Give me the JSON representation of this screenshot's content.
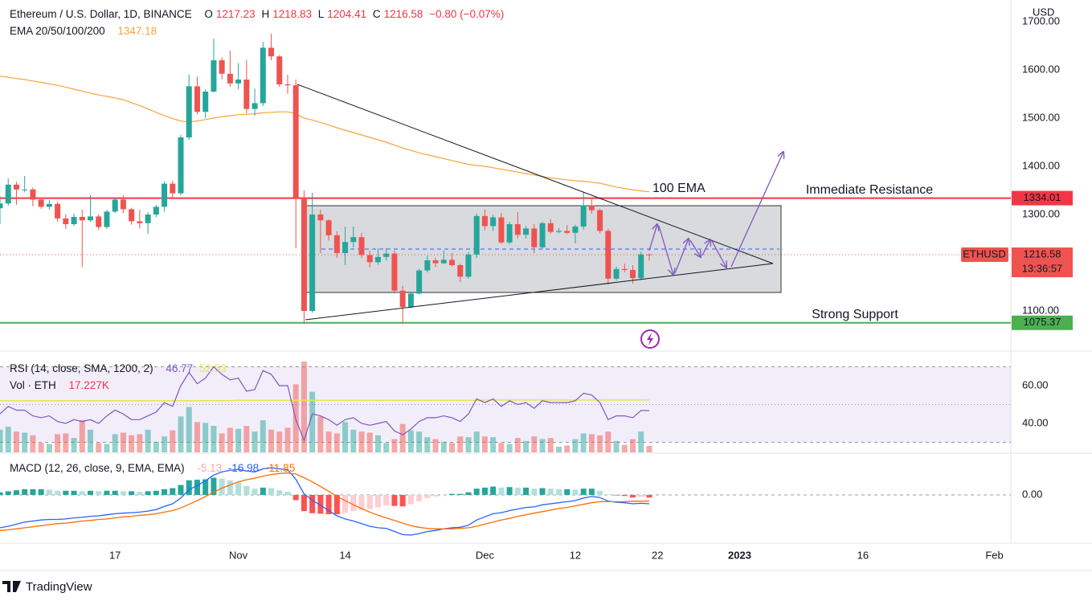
{
  "chart_data": {
    "type": "candlestick",
    "title": "Ethereum / U.S. Dollar, 1D, BINANCE",
    "ohlc_labels": [
      "O",
      "H",
      "L",
      "C"
    ],
    "change": "−0.80 (−0.07%)",
    "currency": "USD",
    "x": [
      "2022-10-03",
      "2022-10-04",
      "2022-10-05",
      "2022-10-06",
      "2022-10-07",
      "2022-10-08",
      "2022-10-09",
      "2022-10-10",
      "2022-10-11",
      "2022-10-12",
      "2022-10-13",
      "2022-10-14",
      "2022-10-15",
      "2022-10-16",
      "2022-10-17",
      "2022-10-18",
      "2022-10-19",
      "2022-10-20",
      "2022-10-21",
      "2022-10-22",
      "2022-10-23",
      "2022-10-24",
      "2022-10-25",
      "2022-10-26",
      "2022-10-27",
      "2022-10-28",
      "2022-10-29",
      "2022-10-30",
      "2022-10-31",
      "2022-11-01",
      "2022-11-02",
      "2022-11-03",
      "2022-11-04",
      "2022-11-05",
      "2022-11-06",
      "2022-11-07",
      "2022-11-08",
      "2022-11-09",
      "2022-11-10",
      "2022-11-11",
      "2022-11-12",
      "2022-11-13",
      "2022-11-14",
      "2022-11-15",
      "2022-11-16",
      "2022-11-17",
      "2022-11-18",
      "2022-11-19",
      "2022-11-20",
      "2022-11-21",
      "2022-11-22",
      "2022-11-23",
      "2022-11-24",
      "2022-11-25",
      "2022-11-26",
      "2022-11-27",
      "2022-11-28",
      "2022-11-29",
      "2022-11-30",
      "2022-12-01",
      "2022-12-02",
      "2022-12-03",
      "2022-12-04",
      "2022-12-05",
      "2022-12-06",
      "2022-12-07",
      "2022-12-08",
      "2022-12-09",
      "2022-12-10",
      "2022-12-11",
      "2022-12-12",
      "2022-12-13",
      "2022-12-14",
      "2022-12-15",
      "2022-12-16",
      "2022-12-17",
      "2022-12-18",
      "2022-12-19",
      "2022-12-20",
      "2022-12-21"
    ],
    "open": [
      1313,
      1323,
      1362,
      1352,
      1352,
      1331,
      1316,
      1322,
      1292,
      1280,
      1295,
      1288,
      1296,
      1274,
      1306,
      1331,
      1311,
      1286,
      1282,
      1300,
      1316,
      1364,
      1344,
      1460,
      1566,
      1513,
      1555,
      1620,
      1592,
      1572,
      1580,
      1519,
      1531,
      1646,
      1628,
      1570,
      1568,
      1334,
      1100,
      1300,
      1288,
      1257,
      1220,
      1243,
      1253,
      1216,
      1201,
      1212,
      1219,
      1142,
      1108,
      1136,
      1184,
      1205,
      1199,
      1206,
      1195,
      1171,
      1217,
      1297,
      1276,
      1294,
      1242,
      1280,
      1258,
      1271,
      1232,
      1282,
      1264,
      1266,
      1262,
      1275,
      1319,
      1309,
      1266,
      1167,
      1187,
      1185,
      1168,
      1217.23
    ],
    "high": [
      1338,
      1375,
      1368,
      1380,
      1356,
      1335,
      1330,
      1326,
      1300,
      1302,
      1310,
      1340,
      1300,
      1310,
      1335,
      1340,
      1314,
      1310,
      1305,
      1320,
      1369,
      1370,
      1465,
      1590,
      1586,
      1560,
      1665,
      1626,
      1640,
      1614,
      1620,
      1561,
      1658,
      1675,
      1631,
      1590,
      1580,
      1350,
      1345,
      1310,
      1290,
      1265,
      1275,
      1275,
      1262,
      1225,
      1230,
      1230,
      1225,
      1152,
      1140,
      1187,
      1215,
      1210,
      1225,
      1220,
      1198,
      1222,
      1302,
      1310,
      1300,
      1303,
      1285,
      1305,
      1276,
      1280,
      1285,
      1290,
      1272,
      1278,
      1279,
      1347,
      1335,
      1312,
      1270,
      1192,
      1198,
      1195,
      1223,
      1218.83
    ],
    "low": [
      1280,
      1318,
      1320,
      1346,
      1317,
      1312,
      1310,
      1285,
      1270,
      1276,
      1191,
      1285,
      1268,
      1270,
      1303,
      1303,
      1279,
      1271,
      1260,
      1294,
      1306,
      1336,
      1340,
      1455,
      1508,
      1500,
      1553,
      1580,
      1565,
      1560,
      1510,
      1505,
      1525,
      1620,
      1565,
      1550,
      1230,
      1073,
      1096,
      1220,
      1246,
      1210,
      1195,
      1232,
      1210,
      1190,
      1196,
      1205,
      1136,
      1073,
      1105,
      1134,
      1180,
      1191,
      1197,
      1192,
      1160,
      1167,
      1210,
      1267,
      1266,
      1239,
      1238,
      1251,
      1250,
      1220,
      1228,
      1260,
      1261,
      1259,
      1240,
      1269,
      1302,
      1261,
      1155,
      1163,
      1180,
      1157,
      1164,
      1204.41
    ],
    "close": [
      1323,
      1362,
      1352,
      1352,
      1331,
      1316,
      1322,
      1292,
      1280,
      1295,
      1288,
      1296,
      1274,
      1306,
      1331,
      1311,
      1286,
      1282,
      1300,
      1316,
      1364,
      1344,
      1460,
      1566,
      1513,
      1555,
      1620,
      1592,
      1572,
      1580,
      1519,
      1531,
      1646,
      1628,
      1570,
      1568,
      1334,
      1100,
      1300,
      1288,
      1257,
      1220,
      1243,
      1253,
      1216,
      1201,
      1212,
      1219,
      1142,
      1108,
      1136,
      1184,
      1205,
      1199,
      1206,
      1195,
      1171,
      1217,
      1297,
      1276,
      1294,
      1242,
      1280,
      1258,
      1271,
      1232,
      1282,
      1264,
      1266,
      1262,
      1275,
      1319,
      1309,
      1266,
      1167,
      1187,
      1185,
      1168,
      1217.38,
      1216.58
    ],
    "up_color": "#26a69a",
    "down_color": "#ef5350",
    "ema": {
      "name": "EMA 20/50/100/200",
      "color": "#f5a53a",
      "values": [
        1587,
        1585,
        1582,
        1580,
        1577,
        1574,
        1571,
        1568,
        1564,
        1560,
        1556,
        1552,
        1548,
        1545,
        1542,
        1538,
        1532,
        1526,
        1519,
        1512,
        1505,
        1499,
        1494,
        1492,
        1494,
        1497,
        1500,
        1503,
        1505,
        1507,
        1508,
        1509,
        1511,
        1512,
        1513,
        1513,
        1509,
        1500,
        1496,
        1491,
        1486,
        1480,
        1475,
        1470,
        1465,
        1460,
        1455,
        1450,
        1444,
        1438,
        1433,
        1428,
        1424,
        1420,
        1416,
        1412,
        1408,
        1404,
        1402,
        1400,
        1397,
        1394,
        1391,
        1388,
        1385,
        1382,
        1379,
        1376,
        1374,
        1372,
        1370,
        1369,
        1367,
        1365,
        1361,
        1357,
        1354,
        1351,
        1349,
        1347.18
      ]
    },
    "ema_label": "100 EMA",
    "xlim": [
      "2022-10-03",
      "2023-02-03"
    ],
    "xticks": [
      {
        "value": "2022-10-17",
        "label": "17"
      },
      {
        "value": "2022-11-01",
        "label": "Nov"
      },
      {
        "value": "2022-11-14",
        "label": "14"
      },
      {
        "value": "2022-12-01",
        "label": "Dec"
      },
      {
        "value": "2022-12-12",
        "label": "12"
      },
      {
        "value": "2022-12-22",
        "label": "22"
      },
      {
        "value": "2023-01-01",
        "label": "2023"
      },
      {
        "value": "2023-01-16",
        "label": "16"
      },
      {
        "value": "2023-02-01",
        "label": "Feb"
      }
    ],
    "ylim": [
      1016.67,
      1745
    ],
    "yticks": [
      {
        "value": 1100,
        "label": "1100.00"
      },
      {
        "value": 1300,
        "label": "1300.00"
      },
      {
        "value": 1400,
        "label": "1400.00"
      },
      {
        "value": 1500,
        "label": "1500.00"
      },
      {
        "value": 1600,
        "label": "1600.00"
      },
      {
        "value": 1700,
        "label": "1700.00"
      }
    ],
    "levels": [
      {
        "name": "Immediate Resistance",
        "value": 1334.01,
        "color": "#f23645"
      },
      {
        "name": "Strong Support",
        "value": 1075.37,
        "color": "#4caf50"
      }
    ],
    "symbol_label": "ETHUSD",
    "countdown": "13:36:57",
    "volume": {
      "name": "Vol · ETH",
      "last_label": "17.227K",
      "values": [
        60000,
        68000,
        55000,
        52000,
        45000,
        25000,
        22000,
        48000,
        50000,
        38000,
        85000,
        60000,
        25000,
        22000,
        48000,
        52000,
        45000,
        48000,
        60000,
        28000,
        42000,
        58000,
        95000,
        120000,
        80000,
        78000,
        70000,
        50000,
        65000,
        62000,
        70000,
        55000,
        85000,
        60000,
        55000,
        65000,
        180000,
        240000,
        160000,
        95000,
        55000,
        50000,
        80000,
        60000,
        55000,
        52000,
        45000,
        25000,
        35000,
        75000,
        58000,
        55000,
        40000,
        35000,
        28000,
        25000,
        42000,
        40000,
        55000,
        42000,
        40000,
        25000,
        22000,
        38000,
        30000,
        42000,
        35000,
        38000,
        15000,
        18000,
        35000,
        50000,
        48000,
        45000,
        55000,
        30000,
        20000,
        35000,
        55000,
        17227
      ]
    },
    "rsi": {
      "name": "RSI (14, close, SMA, 1200, 2)",
      "color": "#7e57c2",
      "values": [
        45,
        49,
        47,
        47,
        44,
        43,
        44,
        41,
        40,
        42,
        41,
        42,
        40,
        44,
        47,
        45,
        42,
        42,
        44,
        46,
        51,
        49,
        60,
        67,
        61,
        64,
        70,
        66,
        63,
        64,
        57,
        58,
        68,
        66,
        60,
        60,
        42,
        31,
        45,
        44,
        42,
        39,
        42,
        43,
        40,
        39,
        40,
        41,
        36,
        34,
        37,
        41,
        43,
        43,
        44,
        43,
        41,
        45,
        53,
        51,
        53,
        49,
        52,
        50,
        51,
        48,
        52,
        51,
        51,
        51,
        52,
        56,
        55,
        51,
        42,
        44,
        44,
        43,
        46.9,
        46.77
      ],
      "ma": {
        "color": "#e6e64c",
        "values": [
          52,
          52,
          52,
          52,
          52,
          52,
          52,
          52,
          52,
          52,
          52,
          52,
          52,
          52,
          52,
          52,
          52,
          52,
          52,
          52,
          52,
          52,
          52,
          52,
          52,
          52,
          52,
          52,
          52,
          52.2,
          52.2,
          52.2,
          52.2,
          52.2,
          52.2,
          52.2,
          52.2,
          52.2,
          52.2,
          52.2,
          52.2,
          52.2,
          52.2,
          52.2,
          52.2,
          52.2,
          52.2,
          52.2,
          52.2,
          52.2,
          52.2,
          52.2,
          52.2,
          52.2,
          52.2,
          52.2,
          52.2,
          52.2,
          52.2,
          52.4,
          52.4,
          52.4,
          52.4,
          52.4,
          52.4,
          52.4,
          52.4,
          52.4,
          52.4,
          52.4,
          52.4,
          52.4,
          52.4,
          52.4,
          52.4,
          52.4,
          52.4,
          52.4,
          52.4,
          52.53
        ]
      },
      "ylim": [
        24.68,
        77.02
      ],
      "yticks": [
        {
          "value": 40,
          "label": "40.00"
        },
        {
          "value": 60,
          "label": "60.00"
        }
      ],
      "bands": [
        70,
        50,
        30
      ]
    },
    "macd": {
      "name": "MACD (12, 26, close, 9, EMA, EMA)",
      "macd": {
        "color": "#2962ff",
        "values": [
          -63,
          -60,
          -56,
          -52,
          -50,
          -48,
          -47,
          -47,
          -46,
          -44,
          -43,
          -41,
          -40,
          -38,
          -36,
          -35,
          -34,
          -33,
          -31,
          -28,
          -22,
          -17,
          -6,
          10,
          18,
          27,
          38,
          44,
          47,
          49,
          46,
          44,
          50,
          52,
          50,
          48,
          30,
          2,
          -10,
          -20,
          -30,
          -40,
          -46,
          -50,
          -55,
          -60,
          -63,
          -64,
          -70,
          -76,
          -77,
          -74,
          -70,
          -68,
          -65,
          -63,
          -62,
          -58,
          -48,
          -42,
          -36,
          -34,
          -30,
          -27,
          -24,
          -23,
          -19,
          -17,
          -15,
          -13,
          -11,
          -6,
          -3,
          -5,
          -12,
          -14,
          -15,
          -17,
          -16,
          -16.98
        ]
      },
      "signal": {
        "color": "#ff6d00",
        "values": [
          -68,
          -67,
          -65,
          -63,
          -61,
          -59,
          -57,
          -55,
          -54,
          -52,
          -50,
          -49,
          -47,
          -46,
          -44,
          -42,
          -41,
          -39,
          -38,
          -36,
          -33,
          -30,
          -25,
          -18,
          -11,
          -3,
          5,
          13,
          19,
          25,
          29,
          32,
          36,
          39,
          41,
          42,
          40,
          33,
          25,
          16,
          7,
          -3,
          -11,
          -19,
          -26,
          -33,
          -39,
          -44,
          -49,
          -54,
          -59,
          -62,
          -64,
          -65,
          -65,
          -65,
          -64,
          -63,
          -60,
          -56,
          -52,
          -48,
          -45,
          -41,
          -38,
          -35,
          -32,
          -29,
          -26,
          -24,
          -21,
          -18,
          -15,
          -13,
          -13,
          -13,
          -13,
          -12,
          -12,
          -11.85
        ]
      },
      "histogram": {
        "values": [
          5,
          7,
          9,
          11,
          11,
          11,
          10,
          8,
          8,
          8,
          7,
          8,
          7,
          8,
          8,
          7,
          7,
          6,
          7,
          8,
          11,
          13,
          19,
          28,
          29,
          30,
          33,
          31,
          28,
          24,
          17,
          12,
          14,
          13,
          9,
          6,
          -10,
          -31,
          -35,
          -36,
          -37,
          -37,
          -35,
          -31,
          -29,
          -27,
          -24,
          -20,
          -21,
          -22,
          -18,
          -12,
          -6,
          -3,
          0,
          2,
          2,
          5,
          12,
          14,
          16,
          14,
          15,
          14,
          14,
          12,
          13,
          12,
          11,
          11,
          10,
          12,
          12,
          8,
          1,
          -1,
          -2,
          -5,
          -4,
          -5.13
        ]
      },
      "ylim": [
        -90.77,
        78.46
      ],
      "yticks": [
        {
          "value": 0,
          "label": "0.00"
        }
      ]
    },
    "logo": "TradingView"
  }
}
